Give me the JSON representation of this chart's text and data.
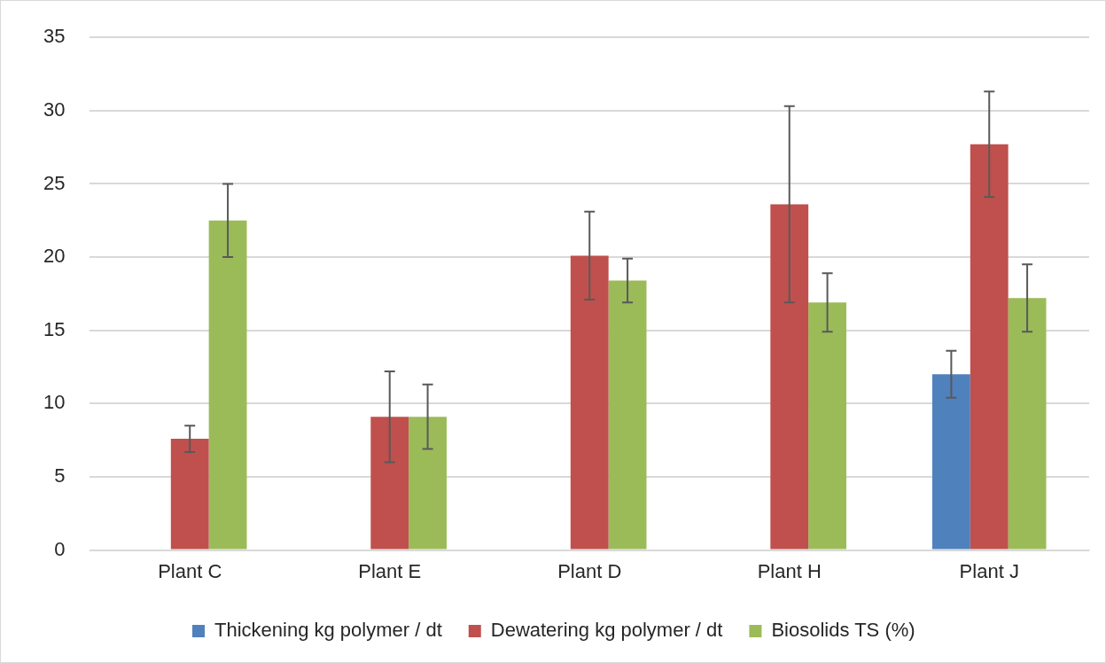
{
  "chart_data": {
    "type": "bar",
    "categories": [
      "Plant C",
      "Plant E",
      "Plant D",
      "Plant H",
      "Plant J"
    ],
    "series": [
      {
        "name": "Thickening kg polymer / dt",
        "color": "#4f81bd",
        "values": [
          null,
          null,
          null,
          null,
          12.0
        ],
        "errors": [
          null,
          null,
          null,
          null,
          1.6
        ]
      },
      {
        "name": "Dewatering kg polymer / dt",
        "color": "#c0504d",
        "values": [
          7.6,
          9.1,
          20.1,
          23.6,
          27.7
        ],
        "errors": [
          0.9,
          3.1,
          3.0,
          6.7,
          3.6
        ]
      },
      {
        "name": "Biosolids TS (%)",
        "color": "#9bbb59",
        "values": [
          22.5,
          9.1,
          18.4,
          16.9,
          17.2
        ],
        "errors": [
          2.5,
          2.2,
          1.5,
          2.0,
          2.3
        ]
      }
    ],
    "ylim": [
      0,
      35
    ],
    "yticks": [
      0,
      5,
      10,
      15,
      20,
      25,
      30,
      35
    ],
    "grid": "y",
    "legend": "bottom"
  }
}
